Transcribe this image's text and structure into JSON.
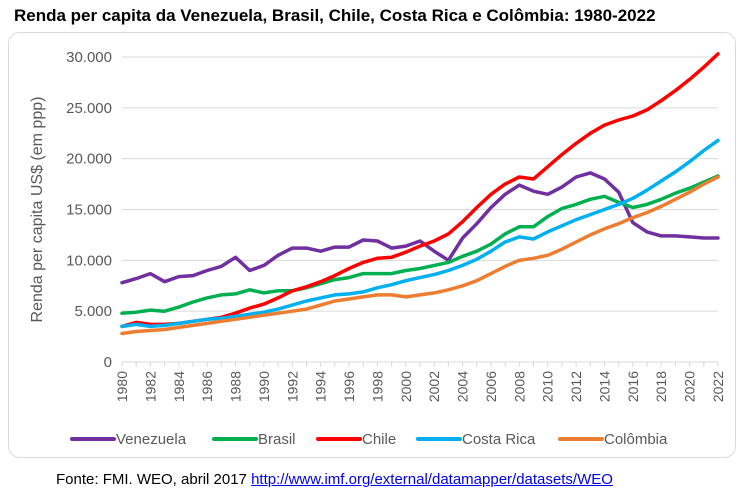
{
  "title": "Renda per capita da Venezuela, Brasil, Chile, Costa Rica e Colômbia: 1980-2022",
  "footer": {
    "prefix": "Fonte: FMI. WEO, abril 2017 ",
    "link": "http://www.imf.org/external/datamapper/datasets/WEO"
  },
  "chart_data": {
    "type": "line",
    "title": "Renda per capita da Venezuela, Brasil, Chile, Costa Rica e Colômbia: 1980-2022",
    "ylabel": "Renda per capita US$ (em ppp)",
    "xlabel": "",
    "ylim": [
      0,
      30000
    ],
    "yticks": [
      0,
      5000,
      10000,
      15000,
      20000,
      25000,
      30000
    ],
    "ytick_labels": [
      "0",
      "5.000",
      "10.000",
      "15.000",
      "20.000",
      "25.000",
      "30.000"
    ],
    "x": [
      1980,
      1981,
      1982,
      1983,
      1984,
      1985,
      1986,
      1987,
      1988,
      1989,
      1990,
      1991,
      1992,
      1993,
      1994,
      1995,
      1996,
      1997,
      1998,
      1999,
      2000,
      2001,
      2002,
      2003,
      2004,
      2005,
      2006,
      2007,
      2008,
      2009,
      2010,
      2011,
      2012,
      2013,
      2014,
      2015,
      2016,
      2017,
      2018,
      2019,
      2020,
      2021,
      2022
    ],
    "xtick_labels": [
      "1980",
      "1982",
      "1984",
      "1986",
      "1988",
      "1990",
      "1992",
      "1994",
      "1996",
      "1998",
      "2000",
      "2002",
      "2004",
      "2006",
      "2008",
      "2010",
      "2012",
      "2014",
      "2016",
      "2018",
      "2020",
      "2022"
    ],
    "grid": "horizontal",
    "legend_position": "bottom",
    "series": [
      {
        "name": "Venezuela",
        "color": "#7030a0",
        "values": [
          7800,
          8200,
          8700,
          7900,
          8400,
          8500,
          9000,
          9400,
          10300,
          9000,
          9500,
          10500,
          11200,
          11200,
          10900,
          11300,
          11300,
          12000,
          11900,
          11200,
          11400,
          11900,
          10900,
          10000,
          12200,
          13600,
          15200,
          16500,
          17400,
          16800,
          16500,
          17200,
          18200,
          18600,
          18000,
          16700,
          13700,
          12800,
          12400,
          12400,
          12300,
          12200,
          12200
        ]
      },
      {
        "name": "Brasil",
        "color": "#00b050",
        "values": [
          4800,
          4900,
          5100,
          5000,
          5400,
          5900,
          6300,
          6600,
          6700,
          7100,
          6800,
          7000,
          7000,
          7300,
          7700,
          8100,
          8300,
          8700,
          8700,
          8700,
          9000,
          9200,
          9500,
          9800,
          10400,
          10900,
          11600,
          12600,
          13300,
          13300,
          14300,
          15100,
          15500,
          16000,
          16300,
          15700,
          15200,
          15500,
          16000,
          16600,
          17100,
          17700,
          18300
        ]
      },
      {
        "name": "Chile",
        "color": "#ff0000",
        "values": [
          3500,
          3900,
          3700,
          3700,
          3800,
          4000,
          4200,
          4400,
          4800,
          5300,
          5700,
          6300,
          7000,
          7400,
          7900,
          8500,
          9200,
          9800,
          10200,
          10300,
          10800,
          11400,
          11900,
          12600,
          13800,
          15200,
          16500,
          17500,
          18200,
          18000,
          19200,
          20400,
          21500,
          22500,
          23300,
          23800,
          24200,
          24800,
          25700,
          26700,
          27800,
          29000,
          30300
        ]
      },
      {
        "name": "Costa Rica",
        "color": "#00b0f0",
        "values": [
          3500,
          3700,
          3500,
          3600,
          3800,
          4000,
          4200,
          4300,
          4500,
          4700,
          4900,
          5200,
          5600,
          6000,
          6300,
          6600,
          6700,
          6900,
          7300,
          7600,
          8000,
          8300,
          8600,
          9000,
          9500,
          10100,
          10900,
          11800,
          12300,
          12100,
          12800,
          13400,
          14000,
          14500,
          15000,
          15500,
          16100,
          16900,
          17800,
          18700,
          19700,
          20800,
          21800
        ]
      },
      {
        "name": "Colômbia",
        "color": "#ed7d31",
        "values": [
          2800,
          3000,
          3100,
          3200,
          3400,
          3600,
          3800,
          4000,
          4200,
          4400,
          4600,
          4800,
          5000,
          5200,
          5600,
          6000,
          6200,
          6400,
          6600,
          6600,
          6400,
          6600,
          6800,
          7100,
          7500,
          8000,
          8700,
          9400,
          10000,
          10200,
          10500,
          11100,
          11800,
          12500,
          13100,
          13600,
          14200,
          14700,
          15300,
          16000,
          16700,
          17500,
          18200
        ]
      }
    ]
  }
}
